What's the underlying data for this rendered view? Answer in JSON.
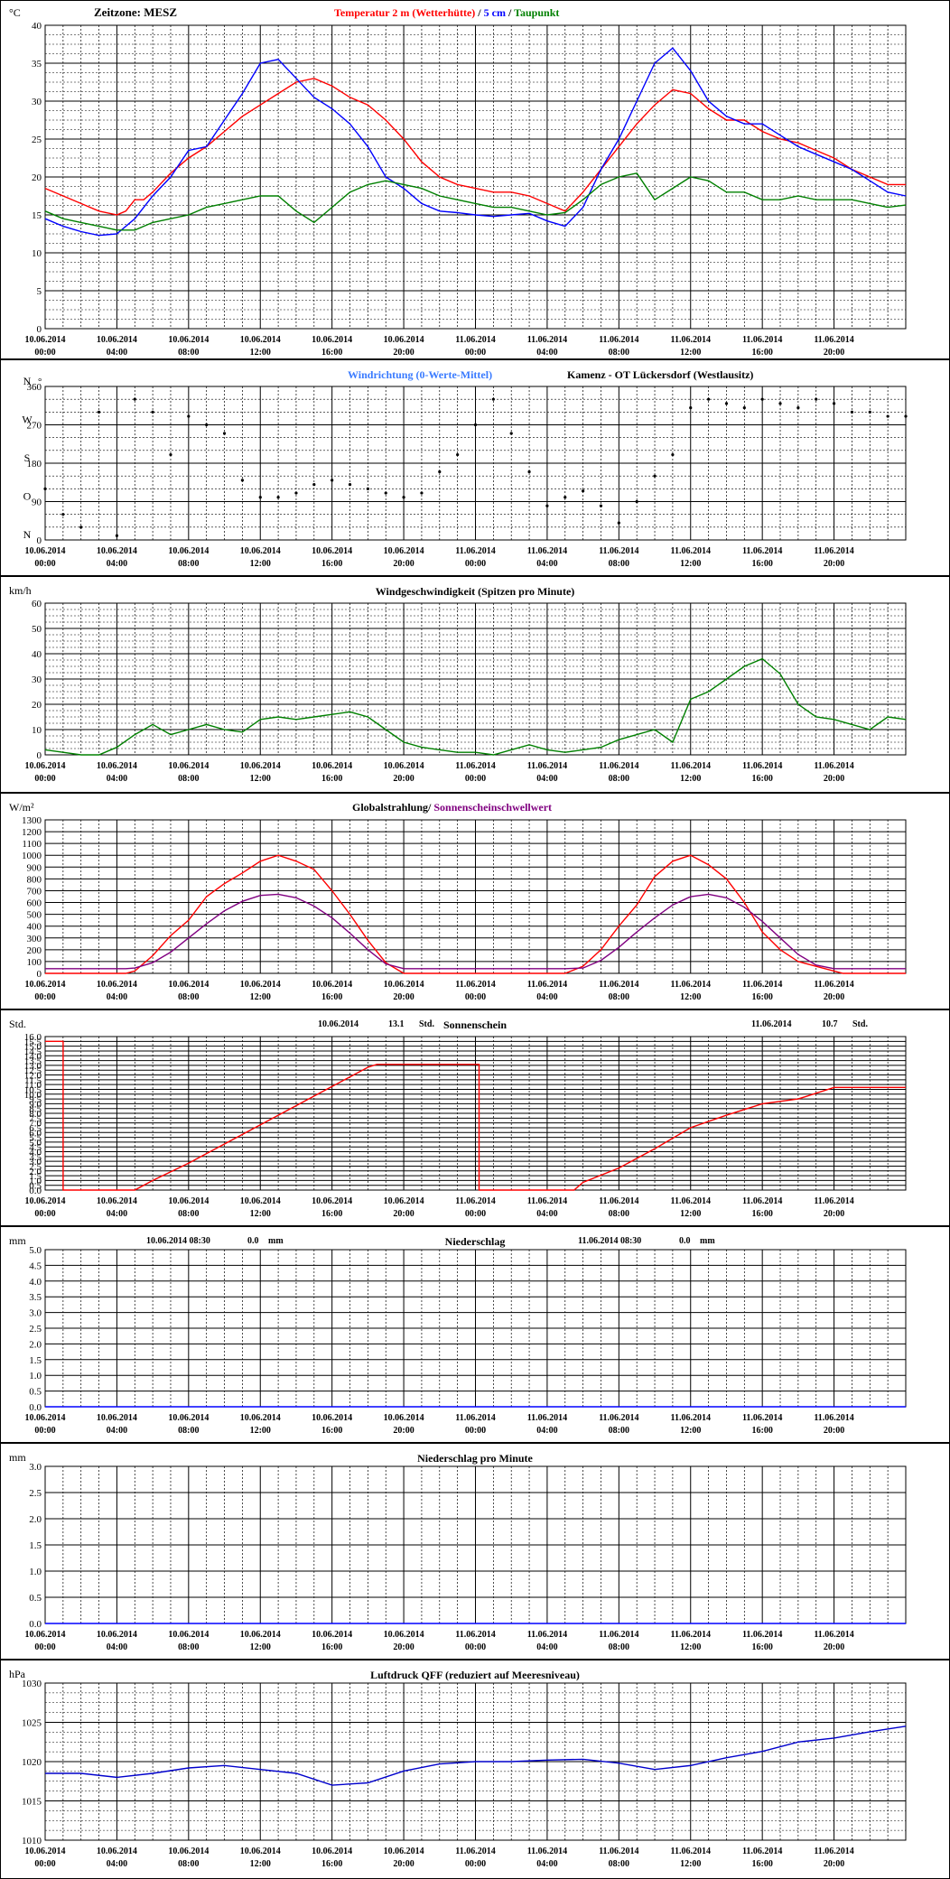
{
  "timezone_label": "Zeitzone: MESZ",
  "station": "Kamenz - OT Lückersdorf (Westlausitz)",
  "x_tick_dates": [
    "10.06.2014",
    "10.06.2014",
    "10.06.2014",
    "10.06.2014",
    "10.06.2014",
    "10.06.2014",
    "11.06.2014",
    "11.06.2014",
    "11.06.2014",
    "11.06.2014",
    "11.06.2014",
    "11.06.2014"
  ],
  "x_tick_times": [
    "00:00",
    "04:00",
    "08:00",
    "12:00",
    "16:00",
    "20:00",
    "00:00",
    "04:00",
    "08:00",
    "12:00",
    "16:00",
    "20:00"
  ],
  "colors": {
    "red": "#ff0000",
    "blue": "#0000ff",
    "green": "#008000",
    "purple": "#800080",
    "wind_dir": "#3a7bff",
    "pressure": "#0000cc"
  },
  "chart_data": [
    {
      "type": "line",
      "title_parts": [
        "Temperatur 2 m (Wetterhütte)",
        " / ",
        "5 cm",
        " / ",
        "Taupunkt"
      ],
      "ylabel": "°C",
      "ylim": [
        0,
        40
      ],
      "yticks": [
        0,
        5,
        10,
        15,
        20,
        25,
        30,
        35,
        40
      ],
      "x_hours": [
        0,
        48
      ],
      "series": [
        {
          "name": "Temperatur 2 m (Wetterhütte)",
          "color": "red",
          "x": [
            0,
            1,
            2,
            3,
            4,
            4.5,
            5,
            5.5,
            6,
            7,
            8,
            9,
            10,
            11,
            12,
            13,
            14,
            15,
            16,
            17,
            18,
            19,
            20,
            21,
            22,
            23,
            24,
            25,
            26,
            27,
            28,
            29,
            30,
            31,
            32,
            33,
            34,
            35,
            36,
            37,
            38,
            39,
            40,
            41,
            42,
            43,
            44,
            45,
            46,
            47,
            48
          ],
          "values": [
            18.5,
            17.5,
            16.5,
            15.5,
            15,
            15.5,
            17,
            17,
            18,
            20.5,
            22.5,
            24,
            26,
            28,
            29.5,
            31,
            32.5,
            33,
            32,
            30.5,
            29.5,
            27.5,
            25,
            22,
            20,
            19,
            18.5,
            18,
            18,
            17.5,
            16.5,
            15.5,
            18,
            21,
            24,
            27,
            29.5,
            31.5,
            31,
            29,
            27.5,
            27.5,
            26,
            25,
            24.5,
            23.5,
            22.5,
            21,
            20,
            19,
            19
          ]
        },
        {
          "name": "5 cm",
          "color": "blue",
          "x": [
            0,
            1,
            2,
            3,
            4,
            5,
            6,
            7,
            8,
            9,
            10,
            11,
            12,
            13,
            14,
            15,
            16,
            17,
            18,
            19,
            20,
            21,
            22,
            23,
            24,
            25,
            26,
            27,
            28,
            29,
            30,
            31,
            32,
            33,
            34,
            35,
            36,
            37,
            38,
            39,
            40,
            41,
            42,
            43,
            44,
            45,
            46,
            47,
            48
          ],
          "values": [
            14.5,
            13.5,
            12.8,
            12.3,
            12.5,
            14.5,
            17.5,
            20,
            23.5,
            24,
            27.5,
            31,
            35,
            35.5,
            33,
            30.5,
            29,
            27,
            24,
            20,
            18.5,
            16.5,
            15.5,
            15.3,
            15,
            14.8,
            15,
            15.2,
            14.2,
            13.5,
            16,
            21,
            25,
            30,
            35,
            37,
            34,
            30,
            28,
            27,
            27,
            25.5,
            24,
            23,
            22,
            21,
            19.5,
            18,
            17.5
          ]
        },
        {
          "name": "Taupunkt",
          "color": "green",
          "x": [
            0,
            1,
            2,
            3,
            4,
            5,
            6,
            7,
            8,
            9,
            10,
            11,
            12,
            13,
            14,
            15,
            16,
            17,
            18,
            19,
            20,
            21,
            22,
            23,
            24,
            25,
            26,
            27,
            28,
            29,
            30,
            31,
            32,
            33,
            34,
            35,
            36,
            37,
            38,
            39,
            40,
            41,
            42,
            43,
            44,
            45,
            46,
            47,
            48
          ],
          "values": [
            15.5,
            14.5,
            14,
            13.5,
            13,
            13,
            14,
            14.5,
            15,
            16,
            16.5,
            17,
            17.5,
            17.5,
            15.5,
            14,
            16,
            18,
            19,
            19.5,
            19,
            18.5,
            17.5,
            17,
            16.5,
            16,
            16,
            15.5,
            15,
            15.3,
            17,
            19,
            20,
            20.5,
            17,
            18.5,
            20,
            19.5,
            18,
            18,
            17,
            17,
            17.5,
            17,
            17,
            17,
            16.5,
            16,
            16.3
          ]
        }
      ]
    },
    {
      "type": "scatter",
      "title": "Windrichtung (0-Werte-Mittel)",
      "ylim": [
        0,
        360
      ],
      "yticks": [
        0,
        90,
        180,
        270,
        360
      ],
      "compass_labels": [
        "N",
        "O",
        "S",
        "W",
        "N"
      ],
      "extra_labels": [
        "°"
      ],
      "x_hours": [
        0,
        48
      ],
      "series": [
        {
          "name": "Windrichtung (0-Werte-Mittel)",
          "color": "black",
          "x": [
            0,
            1,
            2,
            3,
            4,
            5,
            6,
            7,
            8,
            9,
            10,
            11,
            12,
            13,
            14,
            15,
            16,
            17,
            18,
            19,
            20,
            21,
            22,
            23,
            24,
            25,
            26,
            27,
            28,
            29,
            30,
            31,
            32,
            33,
            34,
            35,
            36,
            37,
            38,
            39,
            40,
            41,
            42,
            43,
            44,
            45,
            46,
            47,
            48
          ],
          "values": [
            120,
            60,
            30,
            300,
            10,
            330,
            300,
            200,
            290,
            270,
            250,
            140,
            100,
            100,
            110,
            130,
            140,
            130,
            120,
            110,
            100,
            110,
            160,
            200,
            270,
            330,
            250,
            160,
            80,
            100,
            115,
            80,
            40,
            90,
            150,
            200,
            310,
            330,
            320,
            310,
            330,
            320,
            310,
            330,
            320,
            300,
            300,
            290,
            290
          ]
        }
      ]
    },
    {
      "type": "line",
      "title": "Windgeschwindigkeit (Spitzen pro Minute)",
      "ylabel": "km/h",
      "ylim": [
        0,
        60
      ],
      "yticks": [
        0,
        10,
        20,
        30,
        40,
        50,
        60
      ],
      "x_hours": [
        0,
        48
      ],
      "series": [
        {
          "name": "Windgeschwindigkeit (Spitzen pro Minute)",
          "color": "green",
          "x": [
            0,
            1,
            2,
            3,
            4,
            5,
            6,
            7,
            8,
            9,
            10,
            11,
            12,
            13,
            14,
            15,
            16,
            17,
            18,
            19,
            20,
            21,
            22,
            23,
            24,
            25,
            26,
            27,
            28,
            29,
            30,
            31,
            32,
            33,
            34,
            35,
            36,
            37,
            38,
            39,
            40,
            41,
            42,
            43,
            44,
            45,
            46,
            47,
            48
          ],
          "values": [
            2,
            1,
            0,
            0,
            3,
            8,
            12,
            8,
            10,
            12,
            10,
            9,
            14,
            15,
            14,
            15,
            16,
            17,
            15,
            10,
            5,
            3,
            2,
            1,
            1,
            0,
            2,
            4,
            2,
            1,
            2,
            3,
            6,
            8,
            10,
            5,
            22,
            25,
            30,
            35,
            38,
            32,
            20,
            15,
            14,
            12,
            10,
            15,
            14
          ]
        }
      ]
    },
    {
      "type": "line",
      "title_parts": [
        "Globalstrahlung",
        "/ ",
        "Sonnenscheinschwellwert"
      ],
      "ylabel": "W/m²",
      "ylim": [
        0,
        1300
      ],
      "yticks": [
        0,
        100,
        200,
        300,
        400,
        500,
        600,
        700,
        800,
        900,
        1000,
        1100,
        1200,
        1300
      ],
      "x_hours": [
        0,
        48
      ],
      "series": [
        {
          "name": "Globalstrahlung",
          "color": "red",
          "x": [
            0,
            4.5,
            5,
            6,
            7,
            8,
            9,
            10,
            11,
            12,
            13,
            14,
            15,
            16,
            17,
            18,
            19,
            20,
            29,
            30,
            31,
            32,
            33,
            34,
            35,
            36,
            37,
            38,
            39,
            40,
            41,
            42,
            43,
            44,
            44.5,
            48
          ],
          "values": [
            0,
            0,
            20,
            150,
            320,
            450,
            650,
            760,
            850,
            950,
            1000,
            950,
            880,
            700,
            500,
            280,
            90,
            0,
            0,
            60,
            200,
            400,
            580,
            820,
            950,
            1000,
            920,
            800,
            600,
            350,
            200,
            100,
            60,
            20,
            0,
            0
          ]
        },
        {
          "name": "Sonnenscheinschwellwert",
          "color": "purple",
          "x": [
            0,
            4.5,
            5,
            6,
            7,
            8,
            9,
            10,
            11,
            12,
            13,
            14,
            15,
            16,
            17,
            18,
            19,
            20,
            29,
            30,
            31,
            32,
            33,
            34,
            35,
            36,
            37,
            38,
            39,
            40,
            41,
            42,
            43,
            44,
            44.5,
            48
          ],
          "values": [
            40,
            40,
            45,
            90,
            180,
            300,
            420,
            530,
            610,
            660,
            670,
            640,
            570,
            470,
            340,
            200,
            80,
            40,
            40,
            45,
            110,
            220,
            350,
            470,
            580,
            650,
            670,
            640,
            560,
            440,
            300,
            160,
            70,
            40,
            40,
            40
          ]
        }
      ]
    },
    {
      "type": "line",
      "title": "Sonnenschein",
      "ylabel": "Std.",
      "ylim": [
        0,
        16
      ],
      "yticks": [
        0,
        0.5,
        1,
        1.5,
        2,
        2.5,
        3,
        3.5,
        4,
        4.5,
        5,
        5.5,
        6,
        6.5,
        7,
        7.5,
        8,
        8.5,
        9,
        9.5,
        10,
        10.5,
        11,
        11.5,
        12,
        12.5,
        13,
        13.5,
        14,
        14.5,
        15,
        15.5,
        16
      ],
      "day_sums": [
        {
          "date": "10.06.2014",
          "value": "13.1",
          "unit": "Std."
        },
        {
          "date": "11.06.2014",
          "value": "10.7",
          "unit": "Std."
        }
      ],
      "x_hours": [
        0,
        48
      ],
      "series": [
        {
          "name": "Sonnenschein",
          "color": "red",
          "x": [
            0,
            1,
            1,
            5,
            6,
            8,
            10,
            12,
            14,
            16,
            18,
            18.5,
            24.2,
            24.2,
            29.5,
            30,
            32,
            34,
            36,
            38,
            40,
            42,
            44,
            48
          ],
          "values": [
            15.5,
            15.5,
            0,
            0,
            1,
            2.8,
            4.8,
            6.8,
            8.8,
            10.8,
            12.8,
            13.1,
            13.1,
            0,
            0,
            0.8,
            2.3,
            4.3,
            6.5,
            7.8,
            9,
            9.5,
            10.7,
            10.7
          ]
        }
      ]
    },
    {
      "type": "line",
      "title": "Niederschlag",
      "ylabel": "mm",
      "ylim": [
        0,
        5
      ],
      "yticks": [
        0,
        0.5,
        1,
        1.5,
        2,
        2.5,
        3,
        3.5,
        4,
        4.5,
        5
      ],
      "day_sums": [
        {
          "date": "10.06.2014 08:30",
          "value": "0.0",
          "unit": "mm"
        },
        {
          "date": "11.06.2014 08:30",
          "value": "0.0",
          "unit": "mm"
        }
      ],
      "x_hours": [
        0,
        48
      ],
      "series": [
        {
          "name": "Niederschlag",
          "color": "blue",
          "x": [
            0,
            48
          ],
          "values": [
            0,
            0
          ]
        }
      ]
    },
    {
      "type": "line",
      "title": "Niederschlag pro Minute",
      "ylabel": "mm",
      "ylim": [
        0,
        3
      ],
      "yticks": [
        0,
        0.5,
        1,
        1.5,
        2,
        2.5,
        3
      ],
      "x_hours": [
        0,
        48
      ],
      "series": [
        {
          "name": "Niederschlag pro Minute",
          "color": "blue",
          "x": [
            0,
            48
          ],
          "values": [
            0,
            0
          ]
        }
      ]
    },
    {
      "type": "line",
      "title": "Luftdruck QFF (reduziert auf Meeresniveau)",
      "ylabel": "hPa",
      "ylim": [
        1010,
        1030
      ],
      "yticks": [
        1010,
        1015,
        1020,
        1025,
        1030
      ],
      "x_hours": [
        0,
        48
      ],
      "series": [
        {
          "name": "Luftdruck QFF",
          "color": "pressure",
          "x": [
            0,
            2,
            4,
            6,
            8,
            10,
            12,
            14,
            16,
            18,
            20,
            22,
            24,
            26,
            28,
            30,
            32,
            34,
            36,
            38,
            40,
            42,
            44,
            46,
            48
          ],
          "values": [
            1018.5,
            1018.5,
            1018,
            1018.5,
            1019.2,
            1019.5,
            1019,
            1018.5,
            1017,
            1017.3,
            1018.8,
            1019.7,
            1020,
            1020,
            1020.2,
            1020.3,
            1019.8,
            1019,
            1019.5,
            1020.5,
            1021.3,
            1022.5,
            1023,
            1023.8,
            1024.5
          ]
        }
      ]
    }
  ]
}
